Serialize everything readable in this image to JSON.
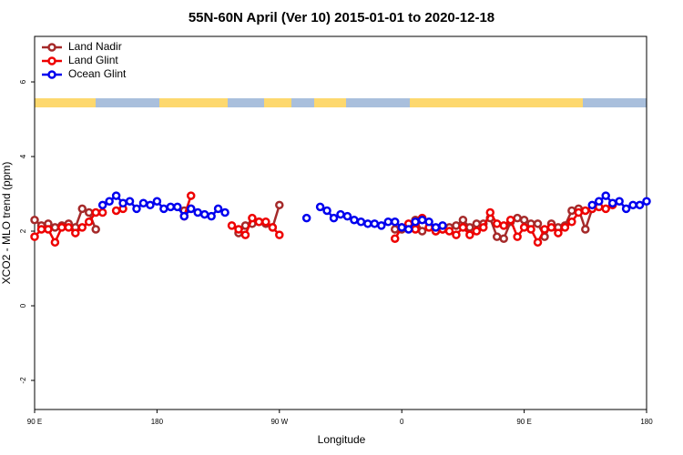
{
  "chart_data": {
    "type": "line",
    "title": "55N-60N April (Ver 10)   2015-01-01 to 2020-12-18",
    "x_label": "Longitude",
    "y_label": "XCO2 - MLO trend (ppm)",
    "xlim": [
      90,
      540
    ],
    "xticks": [
      {
        "value": 90,
        "label": "90 E"
      },
      {
        "value": 180,
        "label": "180"
      },
      {
        "value": 270,
        "label": "90 W"
      },
      {
        "value": 360,
        "label": "0"
      },
      {
        "value": 450,
        "label": "90 E"
      },
      {
        "value": 540,
        "label": "180"
      }
    ],
    "ylim": [
      -2.78,
      7.22
    ],
    "yticks": [
      -2,
      0,
      2,
      4,
      6
    ],
    "legend": "upper-left",
    "series": [
      {
        "name": "Land Nadir",
        "color": "#a52a2a",
        "x": [
          90,
          95,
          100,
          105,
          110,
          115,
          120,
          125,
          130,
          135,
          140,
          200,
          205,
          235,
          240,
          245,
          250,
          255,
          260,
          265,
          270,
          350,
          355,
          360,
          365,
          370,
          375,
          380,
          385,
          390,
          395,
          400,
          405,
          410,
          415,
          420,
          425,
          430,
          435,
          440,
          445,
          450,
          455,
          460,
          465,
          470,
          475,
          480,
          485,
          490,
          495,
          500
        ],
        "values": [
          2.3,
          2.15,
          2.2,
          2.1,
          2.15,
          2.2,
          2.1,
          2.6,
          2.5,
          2.05,
          null,
          2.55,
          2.6,
          null,
          1.95,
          2.15,
          2.2,
          2.25,
          2.2,
          2.1,
          2.7,
          null,
          2.05,
          2.05,
          2.15,
          2.3,
          2.0,
          2.1,
          2.0,
          2.05,
          2.1,
          2.15,
          2.3,
          2.1,
          2.2,
          2.2,
          2.35,
          1.85,
          1.8,
          2.25,
          2.35,
          2.3,
          2.2,
          2.2,
          1.85,
          2.2,
          2.1,
          2.15,
          2.55,
          2.6,
          2.05,
          2.6
        ]
      },
      {
        "name": "Land Glint",
        "color": "#ee0000",
        "x": [
          90,
          95,
          100,
          105,
          110,
          115,
          120,
          125,
          130,
          135,
          140,
          145,
          150,
          155,
          160,
          200,
          205,
          230,
          235,
          240,
          245,
          250,
          255,
          260,
          265,
          270,
          350,
          355,
          360,
          365,
          370,
          375,
          380,
          385,
          390,
          395,
          400,
          405,
          410,
          415,
          420,
          425,
          430,
          435,
          440,
          445,
          450,
          455,
          460,
          465,
          470,
          475,
          480,
          485,
          490,
          495,
          500,
          505,
          510,
          515
        ],
        "values": [
          1.85,
          2.05,
          2.05,
          1.7,
          2.1,
          2.1,
          1.95,
          2.1,
          2.25,
          2.5,
          2.5,
          null,
          2.55,
          2.6,
          null,
          2.4,
          2.95,
          null,
          2.15,
          2.05,
          1.9,
          2.35,
          2.25,
          2.25,
          2.1,
          1.9,
          null,
          1.8,
          2.1,
          2.2,
          2.05,
          2.35,
          2.1,
          2.0,
          2.05,
          2.0,
          1.9,
          2.1,
          1.9,
          2.0,
          2.1,
          2.5,
          2.2,
          2.15,
          2.3,
          1.85,
          2.1,
          2.05,
          1.7,
          2.05,
          2.1,
          1.95,
          2.1,
          2.25,
          2.5,
          2.55,
          2.6,
          2.65,
          2.6,
          2.7
        ]
      },
      {
        "name": "Ocean Glint",
        "color": "#0000ee",
        "x": [
          140,
          145,
          150,
          155,
          160,
          165,
          170,
          175,
          180,
          185,
          190,
          195,
          200,
          205,
          210,
          215,
          220,
          225,
          230,
          260,
          290,
          295,
          300,
          305,
          310,
          315,
          320,
          325,
          330,
          335,
          340,
          345,
          350,
          355,
          360,
          365,
          370,
          375,
          380,
          385,
          390,
          395,
          500,
          505,
          510,
          515,
          520,
          525,
          530,
          535,
          540
        ],
        "values": [
          2.7,
          2.8,
          2.95,
          2.75,
          2.8,
          2.6,
          2.75,
          2.7,
          2.8,
          2.6,
          2.65,
          2.65,
          2.4,
          2.6,
          2.5,
          2.45,
          2.4,
          2.6,
          2.5,
          null,
          2.35,
          null,
          2.65,
          2.55,
          2.35,
          2.45,
          2.4,
          2.3,
          2.25,
          2.2,
          2.2,
          2.15,
          2.25,
          2.25,
          2.1,
          2.05,
          2.25,
          2.3,
          2.25,
          2.1,
          2.15,
          null,
          2.7,
          2.8,
          2.95,
          2.75,
          2.8,
          2.6,
          2.7,
          2.7,
          2.8
        ]
      }
    ]
  }
}
